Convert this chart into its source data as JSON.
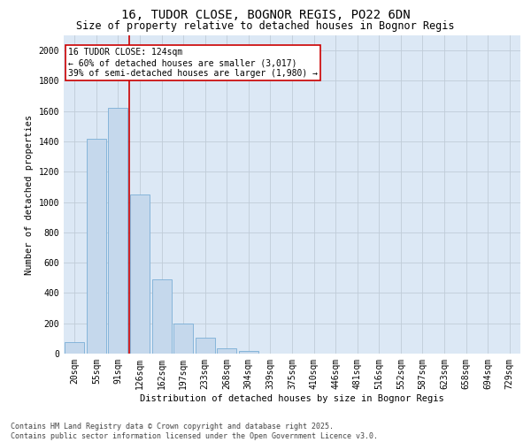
{
  "title_line1": "16, TUDOR CLOSE, BOGNOR REGIS, PO22 6DN",
  "title_line2": "Size of property relative to detached houses in Bognor Regis",
  "xlabel": "Distribution of detached houses by size in Bognor Regis",
  "ylabel": "Number of detached properties",
  "categories": [
    "20sqm",
    "55sqm",
    "91sqm",
    "126sqm",
    "162sqm",
    "197sqm",
    "233sqm",
    "268sqm",
    "304sqm",
    "339sqm",
    "375sqm",
    "410sqm",
    "446sqm",
    "481sqm",
    "516sqm",
    "552sqm",
    "587sqm",
    "623sqm",
    "658sqm",
    "694sqm",
    "729sqm"
  ],
  "values": [
    75,
    1420,
    1620,
    1050,
    490,
    200,
    105,
    35,
    20,
    0,
    0,
    0,
    0,
    0,
    0,
    0,
    0,
    0,
    0,
    0,
    0
  ],
  "bar_color": "#c5d8ec",
  "bar_edge_color": "#7aaed6",
  "vline_color": "#cc0000",
  "annotation_line1": "16 TUDOR CLOSE: 124sqm",
  "annotation_line2": "← 60% of detached houses are smaller (3,017)",
  "annotation_line3": "39% of semi-detached houses are larger (1,980) →",
  "annotation_box_color": "#cc0000",
  "ylim": [
    0,
    2100
  ],
  "yticks": [
    0,
    200,
    400,
    600,
    800,
    1000,
    1200,
    1400,
    1600,
    1800,
    2000
  ],
  "grid_color": "#c0ccd8",
  "background_color": "#dce8f5",
  "footer_line1": "Contains HM Land Registry data © Crown copyright and database right 2025.",
  "footer_line2": "Contains public sector information licensed under the Open Government Licence v3.0.",
  "title_fontsize": 10,
  "subtitle_fontsize": 8.5,
  "axis_label_fontsize": 7.5,
  "tick_fontsize": 7,
  "annotation_fontsize": 7,
  "footer_fontsize": 6
}
